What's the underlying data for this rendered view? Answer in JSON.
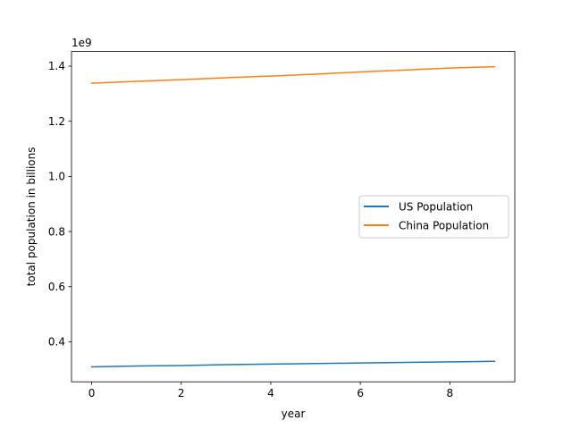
{
  "chart_data": {
    "type": "line",
    "xlabel": "year",
    "ylabel": "total population in billions",
    "offset_label": "1e9",
    "xlim": [
      -0.45,
      9.45
    ],
    "ylim": [
      0.2548,
      1.4532
    ],
    "x_ticks": [
      0,
      2,
      4,
      6,
      8
    ],
    "y_ticks": [
      0.4,
      0.6,
      0.8,
      1.0,
      1.2,
      1.4
    ],
    "y_tick_labels": [
      "0.4",
      "0.6",
      "0.8",
      "1.0",
      "1.2",
      "1.4"
    ],
    "grid": false,
    "legend_position": "center-right",
    "x": [
      0,
      1,
      2,
      3,
      4,
      5,
      6,
      7,
      8,
      9
    ],
    "series": [
      {
        "name": "US Population",
        "color": "#1f77b4",
        "values": [
          0.309,
          0.312,
          0.314,
          0.317,
          0.319,
          0.321,
          0.323,
          0.325,
          0.327,
          0.329
        ]
      },
      {
        "name": "China Population",
        "color": "#ff7f0e",
        "values": [
          1.338,
          1.345,
          1.351,
          1.358,
          1.364,
          1.371,
          1.379,
          1.386,
          1.393,
          1.398
        ]
      }
    ]
  }
}
